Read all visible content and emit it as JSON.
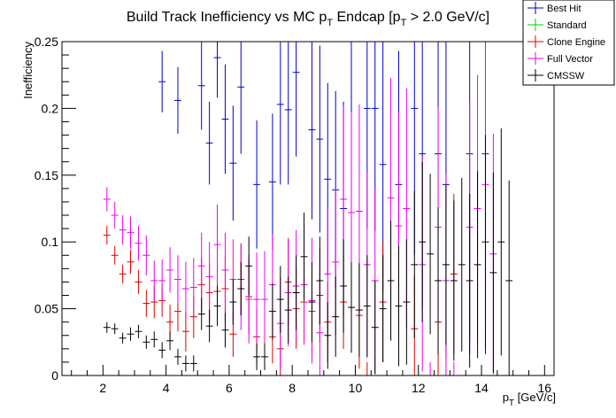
{
  "chart_data": {
    "type": "scatter",
    "title": "Build Track Inefficiency vs MC p",
    "title_sub": "T",
    "title_rest": " Endcap [p",
    "title_sub2": "T",
    "title_end": " > 2.0 GeV/c]",
    "xlabel": "p",
    "xlabel_sub": "T",
    "xlabel_rest": " [GeV/c]",
    "ylabel": "Inefficiency",
    "xlim": [
      0.7,
      16.3
    ],
    "ylim": [
      0,
      0.25
    ],
    "x_ticks": [
      2,
      4,
      6,
      8,
      10,
      12,
      14,
      16
    ],
    "y_ticks": [
      0,
      0.05,
      0.1,
      0.15,
      0.2,
      0.25
    ],
    "y_tick_labels": [
      "0",
      "0.05",
      "0.1",
      "0.15",
      "0.2",
      "0.25"
    ],
    "grid": false,
    "legend_position": "top-right",
    "bin_width": 0.25,
    "series": [
      {
        "name": "Best Hit",
        "color": "#0000cc",
        "points": [
          [
            3.875,
            0.22,
            0.023
          ],
          [
            4.375,
            0.206,
            0.025
          ],
          [
            5.125,
            0.217,
            0.033
          ],
          [
            5.375,
            0.174,
            0.031
          ],
          [
            5.625,
            0.238,
            0.03
          ],
          [
            5.875,
            0.192,
            0.041
          ],
          [
            6.125,
            0.159,
            0.043
          ],
          [
            6.375,
            0.216,
            0.05
          ],
          [
            6.875,
            0.143,
            0.048
          ],
          [
            7.375,
            0.145,
            0.051
          ],
          [
            7.625,
            0.203,
            0.06
          ],
          [
            7.875,
            0.199,
            0.056
          ],
          [
            8.125,
            0.227,
            0.063
          ],
          [
            8.625,
            0.184,
            0.067
          ],
          [
            8.875,
            0.177,
            0.07
          ],
          [
            9.125,
            0.147,
            0.072
          ],
          [
            9.375,
            0.139,
            0.074
          ],
          [
            9.625,
            0.125,
            0.08
          ],
          [
            9.875,
            0.25,
            0.083
          ],
          [
            10.375,
            0.2,
            0.09
          ],
          [
            10.625,
            0.2,
            0.092
          ],
          [
            10.875,
            0.158,
            0.095
          ],
          [
            11.375,
            0.143,
            0.1
          ],
          [
            11.875,
            0.2,
            0.11
          ],
          [
            12.125,
            0.166,
            0.115
          ],
          [
            12.625,
            0.166,
            0.12
          ],
          [
            12.875,
            0.143,
            0.13
          ],
          [
            13.625,
            0.166,
            0.14
          ],
          [
            14.125,
            0.166,
            0.15
          ]
        ]
      },
      {
        "name": "Standard",
        "color": "#00cc00",
        "points": []
      },
      {
        "name": "Clone Engine",
        "color": "#dd0000",
        "points": [
          [
            2.125,
            0.105,
            0.007
          ],
          [
            2.375,
            0.09,
            0.007
          ],
          [
            2.625,
            0.076,
            0.007
          ],
          [
            2.875,
            0.085,
            0.009
          ],
          [
            3.125,
            0.07,
            0.009
          ],
          [
            3.375,
            0.054,
            0.01
          ],
          [
            3.625,
            0.055,
            0.012
          ],
          [
            3.875,
            0.056,
            0.012
          ],
          [
            4.125,
            0.04,
            0.013
          ],
          [
            4.375,
            0.048,
            0.015
          ],
          [
            4.625,
            0.033,
            0.015
          ],
          [
            4.875,
            0.044,
            0.016
          ],
          [
            5.125,
            0.068,
            0.02
          ],
          [
            5.375,
            0.062,
            0.022
          ],
          [
            5.625,
            0.063,
            0.023
          ],
          [
            5.875,
            0.065,
            0.025
          ],
          [
            6.125,
            0.031,
            0.017
          ],
          [
            6.375,
            0.072,
            0.027
          ],
          [
            6.625,
            0.059,
            0.028
          ],
          [
            6.875,
            0.029,
            0.02
          ],
          [
            7.375,
            0.029,
            0.02
          ],
          [
            7.625,
            0.02,
            0.02
          ],
          [
            7.875,
            0.07,
            0.033
          ],
          [
            8.125,
            0.05,
            0.03
          ],
          [
            8.375,
            0.055,
            0.03
          ],
          [
            8.625,
            0.048,
            0.031
          ],
          [
            8.875,
            0.06,
            0.035
          ],
          [
            9.125,
            0.04,
            0.03
          ],
          [
            9.625,
            0.055,
            0.035
          ],
          [
            10.125,
            0.045,
            0.04
          ],
          [
            10.375,
            0.0,
            0.01
          ],
          [
            10.875,
            0.055,
            0.045
          ],
          [
            11.875,
            0.035,
            0.04
          ],
          [
            12.625,
            0.04,
            0.045
          ],
          [
            13.125,
            0.076,
            0.06
          ]
        ]
      },
      {
        "name": "Full Vector",
        "color": "#ee00ee",
        "points": [
          [
            2.125,
            0.132,
            0.009
          ],
          [
            2.375,
            0.12,
            0.01
          ],
          [
            2.625,
            0.109,
            0.011
          ],
          [
            2.875,
            0.107,
            0.012
          ],
          [
            3.125,
            0.099,
            0.013
          ],
          [
            3.375,
            0.09,
            0.015
          ],
          [
            3.625,
            0.071,
            0.015
          ],
          [
            3.875,
            0.071,
            0.016
          ],
          [
            4.125,
            0.079,
            0.017
          ],
          [
            4.375,
            0.072,
            0.018
          ],
          [
            4.625,
            0.065,
            0.02
          ],
          [
            4.875,
            0.066,
            0.022
          ],
          [
            5.125,
            0.082,
            0.025
          ],
          [
            5.375,
            0.074,
            0.026
          ],
          [
            5.625,
            0.098,
            0.03
          ],
          [
            5.875,
            0.079,
            0.028
          ],
          [
            6.125,
            0.072,
            0.03
          ],
          [
            6.375,
            0.065,
            0.031
          ],
          [
            6.625,
            0.057,
            0.033
          ],
          [
            6.875,
            0.057,
            0.035
          ],
          [
            7.125,
            0.057,
            0.036
          ],
          [
            7.375,
            0.068,
            0.038
          ],
          [
            7.625,
            0.039,
            0.035
          ],
          [
            7.875,
            0.062,
            0.04
          ],
          [
            8.125,
            0.067,
            0.042
          ],
          [
            8.375,
            0.068,
            0.045
          ],
          [
            8.625,
            0.056,
            0.047
          ],
          [
            8.875,
            0.032,
            0.045
          ],
          [
            9.125,
            0.076,
            0.05
          ],
          [
            9.375,
            0.085,
            0.055
          ],
          [
            9.625,
            0.132,
            0.07
          ],
          [
            9.875,
            0.122,
            0.075
          ],
          [
            10.125,
            0.123,
            0.08
          ],
          [
            10.375,
            0.083,
            0.07
          ],
          [
            10.625,
            0.071,
            0.07
          ],
          [
            11.125,
            0.133,
            0.09
          ],
          [
            11.375,
            0.112,
            0.085
          ],
          [
            11.625,
            0.125,
            0.09
          ],
          [
            12.125,
            0.083,
            0.08
          ],
          [
            12.375,
            0.0,
            0.01
          ],
          [
            12.625,
            0.111,
            0.09
          ],
          [
            12.875,
            0.071,
            0.08
          ],
          [
            13.125,
            0.0,
            0.01
          ],
          [
            13.625,
            0.111,
            0.095
          ],
          [
            13.875,
            0.125,
            0.1
          ],
          [
            14.125,
            0.143,
            0.11
          ],
          [
            14.375,
            0.091,
            0.09
          ]
        ]
      },
      {
        "name": "CMSSW",
        "color": "#000000",
        "points": [
          [
            2.125,
            0.036,
            0.004
          ],
          [
            2.375,
            0.035,
            0.004
          ],
          [
            2.625,
            0.028,
            0.004
          ],
          [
            2.875,
            0.031,
            0.005
          ],
          [
            3.125,
            0.033,
            0.005
          ],
          [
            3.375,
            0.025,
            0.005
          ],
          [
            3.625,
            0.027,
            0.006
          ],
          [
            3.875,
            0.019,
            0.006
          ],
          [
            4.125,
            0.026,
            0.007
          ],
          [
            4.375,
            0.014,
            0.006
          ],
          [
            4.625,
            0.009,
            0.006
          ],
          [
            4.875,
            0.009,
            0.006
          ],
          [
            5.125,
            0.046,
            0.012
          ],
          [
            5.375,
            0.037,
            0.012
          ],
          [
            5.625,
            0.052,
            0.015
          ],
          [
            5.875,
            0.034,
            0.013
          ],
          [
            6.125,
            0.055,
            0.017
          ],
          [
            6.375,
            0.065,
            0.02
          ],
          [
            6.625,
            0.082,
            0.022
          ],
          [
            6.875,
            0.014,
            0.01
          ],
          [
            7.125,
            0.014,
            0.01
          ],
          [
            7.375,
            0.048,
            0.021
          ],
          [
            7.625,
            0.057,
            0.025
          ],
          [
            7.875,
            0.049,
            0.025
          ],
          [
            8.125,
            0.062,
            0.028
          ],
          [
            8.375,
            0.089,
            0.033
          ],
          [
            8.625,
            0.055,
            0.03
          ],
          [
            8.875,
            0.071,
            0.033
          ],
          [
            9.125,
            0.03,
            0.025
          ],
          [
            9.375,
            0.044,
            0.03
          ],
          [
            9.625,
            0.067,
            0.035
          ],
          [
            9.875,
            0.051,
            0.034
          ],
          [
            10.125,
            0.049,
            0.035
          ],
          [
            10.375,
            0.052,
            0.038
          ],
          [
            10.625,
            0.036,
            0.035
          ],
          [
            10.875,
            0.05,
            0.04
          ],
          [
            11.125,
            0.071,
            0.045
          ],
          [
            11.375,
            0.052,
            0.045
          ],
          [
            11.625,
            0.055,
            0.047
          ],
          [
            11.875,
            0.083,
            0.055
          ],
          [
            12.125,
            0.1,
            0.06
          ],
          [
            12.375,
            0.091,
            0.06
          ],
          [
            12.625,
            0.071,
            0.055
          ],
          [
            12.875,
            0.083,
            0.06
          ],
          [
            13.125,
            0.071,
            0.06
          ],
          [
            13.375,
            0.083,
            0.065
          ],
          [
            13.625,
            0.071,
            0.065
          ],
          [
            13.875,
            0.083,
            0.07
          ],
          [
            14.125,
            0.1,
            0.08
          ],
          [
            14.375,
            0.077,
            0.075
          ],
          [
            14.625,
            0.1,
            0.085
          ],
          [
            14.875,
            0.071,
            0.075
          ]
        ]
      }
    ]
  }
}
